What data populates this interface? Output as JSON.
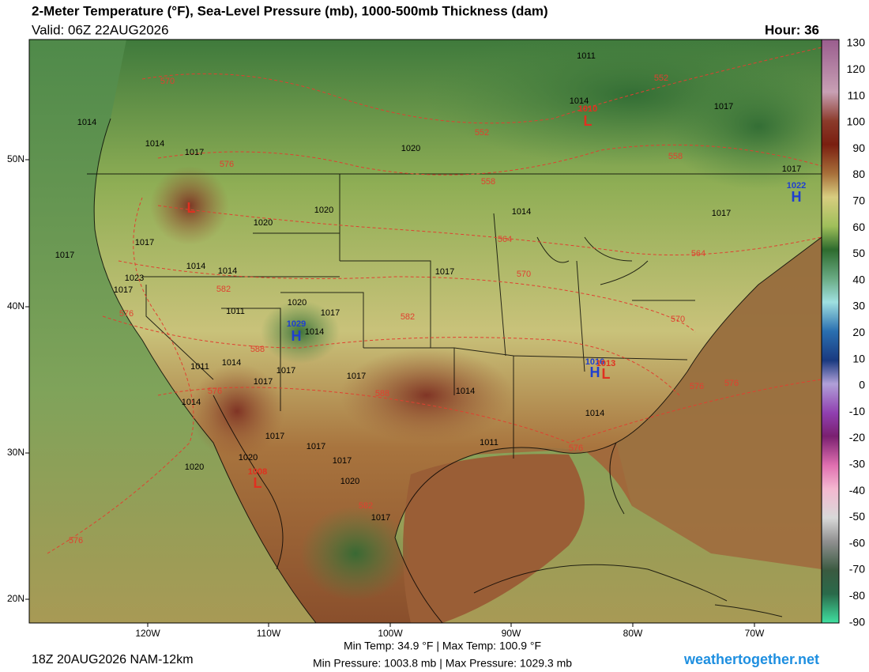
{
  "header": {
    "title": "2-Meter Temperature (°F), Sea-Level Pressure (mb), 1000-500mb Thickness (dam)",
    "valid": "Valid: 06Z 22AUG2026",
    "hour": "Hour: 36"
  },
  "colorbar": {
    "labels": [
      130,
      120,
      110,
      100,
      90,
      80,
      70,
      60,
      50,
      40,
      30,
      20,
      10,
      0,
      -10,
      -20,
      -30,
      -40,
      -50,
      -60,
      -70,
      -80,
      -90
    ]
  },
  "lat_labels": [
    "50N",
    "40N",
    "30N",
    "20N"
  ],
  "lon_labels": [
    "120W",
    "110W",
    "100W",
    "90W",
    "80W",
    "70W"
  ],
  "pressure_centers": [
    {
      "letter": "H",
      "value": "1029"
    },
    {
      "letter": "L",
      "value": "1008"
    },
    {
      "letter": "L",
      "value": "1010"
    },
    {
      "letter": "H",
      "value": "1022"
    },
    {
      "letter": "H",
      "value": "1016"
    },
    {
      "letter": "L",
      "value": "1013"
    },
    {
      "letter": "L"
    }
  ],
  "isobar_labels": [
    "1011",
    "1014",
    "1014",
    "1017",
    "1020",
    "1017",
    "1014",
    "1017",
    "1017",
    "1014",
    "1020",
    "1020",
    "1017",
    "1017",
    "1023",
    "1017",
    "1014",
    "1014",
    "1020",
    "1017",
    "1014",
    "1011",
    "1011",
    "1014",
    "1017",
    "1017",
    "1017",
    "1014",
    "1014",
    "1017",
    "1011",
    "1014",
    "1020",
    "1020",
    "1017",
    "1017",
    "1017",
    "1020",
    "1017"
  ],
  "thickness_labels": [
    "570",
    "576",
    "552",
    "558",
    "552",
    "558",
    "564",
    "570",
    "582",
    "564",
    "576",
    "582",
    "588",
    "588",
    "576",
    "576",
    "576",
    "582",
    "576",
    "570",
    "576"
  ],
  "footer": {
    "run": "18Z 20AUG2026 NAM-12km",
    "temp": "Min Temp:  34.9 °F | Max Temp: 100.9 °F",
    "pressure": "Min Pressure: 1003.8 mb | Max Pressure: 1029.3 mb",
    "brand": "weathertogether.net"
  }
}
